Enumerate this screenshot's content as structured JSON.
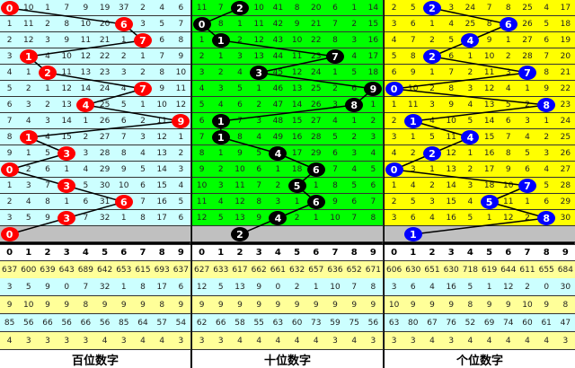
{
  "header_digits": [
    0,
    1,
    2,
    3,
    4,
    5,
    6,
    7,
    8,
    9
  ],
  "panels": [
    {
      "label": "百位数字",
      "bg_color": "#ccffff",
      "ball_color": "#ff0000",
      "digits": [
        0,
        6,
        7,
        1,
        2,
        7,
        4,
        9,
        1,
        3,
        0,
        3,
        6,
        3
      ],
      "next_digit": 0,
      "rows": [
        [
          0,
          10,
          1,
          7,
          9,
          19,
          37,
          2,
          4,
          6
        ],
        [
          1,
          11,
          2,
          8,
          10,
          20,
          6,
          3,
          5,
          7
        ],
        [
          2,
          12,
          3,
          9,
          11,
          21,
          1,
          7,
          6,
          8
        ],
        [
          3,
          1,
          4,
          10,
          12,
          22,
          2,
          1,
          7,
          9
        ],
        [
          4,
          1,
          2,
          11,
          13,
          23,
          3,
          2,
          8,
          10
        ],
        [
          5,
          2,
          1,
          12,
          14,
          24,
          4,
          7,
          9,
          11
        ],
        [
          6,
          3,
          2,
          13,
          4,
          25,
          5,
          1,
          10,
          12
        ],
        [
          7,
          4,
          3,
          14,
          1,
          26,
          6,
          2,
          11,
          9
        ],
        [
          8,
          1,
          4,
          15,
          2,
          27,
          7,
          3,
          12,
          1
        ],
        [
          9,
          1,
          5,
          3,
          3,
          28,
          8,
          4,
          13,
          2
        ],
        [
          0,
          2,
          6,
          1,
          4,
          29,
          9,
          5,
          14,
          3
        ],
        [
          1,
          3,
          7,
          3,
          5,
          30,
          10,
          6,
          15,
          4
        ],
        [
          2,
          4,
          8,
          1,
          6,
          31,
          6,
          7,
          16,
          5
        ],
        [
          3,
          5,
          9,
          3,
          7,
          32,
          1,
          8,
          17,
          6
        ]
      ],
      "stats": [
        [
          637,
          600,
          639,
          643,
          689,
          642,
          653,
          615,
          693,
          637
        ],
        [
          3,
          5,
          9,
          0,
          7,
          32,
          1,
          8,
          17,
          6
        ],
        [
          9,
          10,
          9,
          9,
          8,
          9,
          9,
          9,
          8,
          9
        ],
        [
          85,
          56,
          66,
          56,
          66,
          56,
          85,
          64,
          57,
          54
        ],
        [
          4,
          3,
          3,
          3,
          3,
          4,
          3,
          4,
          4,
          3
        ]
      ]
    },
    {
      "label": "十位数字",
      "bg_color": "#00ff00",
      "ball_color": "#000000",
      "digits": [
        2,
        0,
        1,
        7,
        3,
        9,
        8,
        1,
        1,
        4,
        6,
        5,
        6,
        4
      ],
      "next_digit": 2,
      "rows": [
        [
          11,
          7,
          2,
          10,
          41,
          8,
          20,
          6,
          1,
          14
        ],
        [
          0,
          8,
          1,
          11,
          42,
          9,
          21,
          7,
          2,
          15
        ],
        [
          1,
          1,
          2,
          12,
          43,
          10,
          22,
          8,
          3,
          16
        ],
        [
          2,
          1,
          3,
          13,
          44,
          11,
          23,
          7,
          4,
          17
        ],
        [
          3,
          2,
          4,
          3,
          45,
          12,
          24,
          1,
          5,
          18
        ],
        [
          4,
          3,
          5,
          1,
          46,
          13,
          25,
          2,
          6,
          9
        ],
        [
          5,
          4,
          6,
          2,
          47,
          14,
          26,
          3,
          8,
          1
        ],
        [
          6,
          1,
          7,
          3,
          48,
          15,
          27,
          4,
          1,
          2
        ],
        [
          7,
          1,
          8,
          4,
          49,
          16,
          28,
          5,
          2,
          3
        ],
        [
          8,
          1,
          9,
          5,
          4,
          17,
          29,
          6,
          3,
          4
        ],
        [
          9,
          2,
          10,
          6,
          1,
          18,
          6,
          7,
          4,
          5
        ],
        [
          10,
          3,
          11,
          7,
          2,
          5,
          1,
          8,
          5,
          6
        ],
        [
          11,
          4,
          12,
          8,
          3,
          1,
          6,
          9,
          6,
          7
        ],
        [
          12,
          5,
          13,
          9,
          4,
          2,
          1,
          10,
          7,
          8
        ]
      ],
      "stats": [
        [
          627,
          633,
          617,
          662,
          661,
          632,
          657,
          636,
          652,
          671
        ],
        [
          12,
          5,
          13,
          9,
          0,
          2,
          1,
          10,
          7,
          8
        ],
        [
          9,
          9,
          9,
          9,
          9,
          9,
          9,
          9,
          9,
          9
        ],
        [
          62,
          66,
          58,
          55,
          63,
          60,
          73,
          59,
          75,
          56
        ],
        [
          3,
          3,
          4,
          4,
          4,
          4,
          4,
          3,
          4,
          3
        ]
      ]
    },
    {
      "label": "个位数字",
      "bg_color": "#ffff00",
      "ball_color": "#0000ff",
      "digits": [
        2,
        6,
        4,
        2,
        7,
        0,
        8,
        1,
        4,
        2,
        0,
        7,
        5,
        8
      ],
      "next_digit": 1,
      "rows": [
        [
          2,
          5,
          2,
          3,
          24,
          7,
          8,
          25,
          4,
          17
        ],
        [
          3,
          6,
          1,
          4,
          25,
          8,
          6,
          26,
          5,
          18
        ],
        [
          4,
          7,
          2,
          5,
          4,
          9,
          1,
          27,
          6,
          19
        ],
        [
          5,
          8,
          2,
          6,
          1,
          10,
          2,
          28,
          7,
          20
        ],
        [
          6,
          9,
          1,
          7,
          2,
          11,
          3,
          7,
          8,
          21
        ],
        [
          0,
          10,
          2,
          8,
          3,
          12,
          4,
          1,
          9,
          22
        ],
        [
          1,
          11,
          3,
          9,
          4,
          13,
          5,
          2,
          8,
          23
        ],
        [
          2,
          1,
          4,
          10,
          5,
          14,
          6,
          3,
          1,
          24
        ],
        [
          3,
          1,
          5,
          11,
          4,
          15,
          7,
          4,
          2,
          25
        ],
        [
          4,
          2,
          2,
          12,
          1,
          16,
          8,
          5,
          3,
          26
        ],
        [
          0,
          3,
          1,
          13,
          2,
          17,
          9,
          6,
          4,
          27
        ],
        [
          1,
          4,
          2,
          14,
          3,
          18,
          10,
          7,
          5,
          28
        ],
        [
          2,
          5,
          3,
          15,
          4,
          5,
          11,
          1,
          6,
          29
        ],
        [
          3,
          6,
          4,
          16,
          5,
          1,
          12,
          2,
          8,
          30
        ]
      ],
      "stats": [
        [
          606,
          630,
          651,
          630,
          718,
          619,
          644,
          611,
          655,
          684
        ],
        [
          3,
          6,
          4,
          16,
          5,
          1,
          12,
          2,
          0,
          30
        ],
        [
          10,
          9,
          9,
          9,
          8,
          9,
          9,
          10,
          9,
          8
        ],
        [
          63,
          80,
          67,
          76,
          52,
          69,
          74,
          60,
          61,
          47
        ],
        [
          3,
          3,
          4,
          3,
          4,
          4,
          4,
          4,
          4,
          3
        ]
      ]
    }
  ]
}
